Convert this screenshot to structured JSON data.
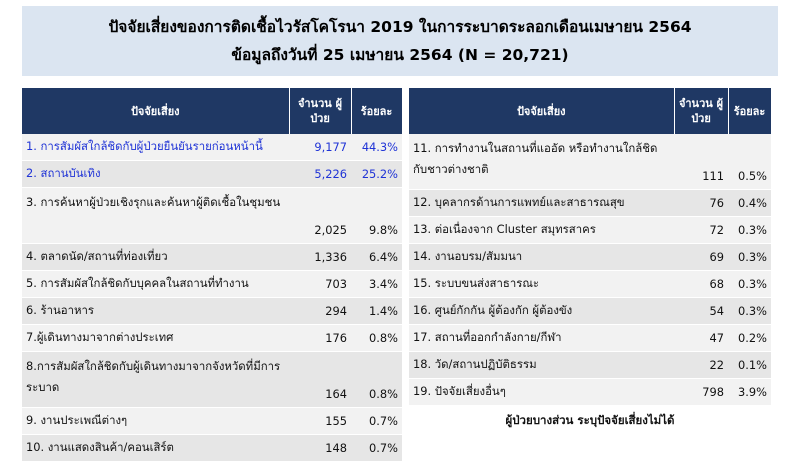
{
  "title": {
    "line1": "ปัจจัยเสี่ยงของการติดเชื้อไวรัสโคโรนา 2019 ในการระบาดระลอกเดือนเมษายน 2564",
    "line2": "ข้อมูลถึงวันที่ 25 เมษายน 2564 (N = 20,721)"
  },
  "table_left": {
    "headers": {
      "factor": "ปัจจัยเสี่ยง",
      "count": "จำนวน ผู้ป่วย",
      "percent": "ร้อยละ"
    },
    "rows": [
      {
        "factor": "1. การสัมผัสใกล้ชิดกับผู้ป่วยยืนยันรายก่อนหน้านี้",
        "count": "9,177",
        "percent": "44.3%"
      },
      {
        "factor": "2. สถานบันเทิง",
        "count": "5,226",
        "percent": "25.2%"
      },
      {
        "factor": "3. การค้นหาผู้ป่วยเชิงรุกและค้นหาผู้ติดเชื้อในชุมชน",
        "count": "2,025",
        "percent": "9.8%"
      },
      {
        "factor": "4. ตลาดนัด/สถานที่ท่องเที่ยว",
        "count": "1,336",
        "percent": "6.4%"
      },
      {
        "factor": "5. การสัมผัสใกล้ชิดกับบุคคลในสถานที่ทำงาน",
        "count": "703",
        "percent": "3.4%"
      },
      {
        "factor": "6. ร้านอาหาร",
        "count": "294",
        "percent": "1.4%"
      },
      {
        "factor": "7.ผู้เดินทางมาจากต่างประเทศ",
        "count": "176",
        "percent": "0.8%"
      },
      {
        "factor": "8.การสัมผัสใกล้ชิดกับผู้เดินทางมาจากจังหวัดที่มีการระบาด",
        "count": "164",
        "percent": "0.8%"
      },
      {
        "factor": "9. งานประเพณีต่างๆ",
        "count": "155",
        "percent": "0.7%"
      },
      {
        "factor": "10. งานแสดงสินค้า/คอนเสิร์ต",
        "count": "148",
        "percent": "0.7%"
      }
    ]
  },
  "table_right": {
    "headers": {
      "factor": "ปัจจัยเสี่ยง",
      "count": "จำนวน ผู้ป่วย",
      "percent": "ร้อยละ"
    },
    "rows": [
      {
        "factor": "11. การทำงานในสถานที่แออัด หรือทำงานใกล้ชิดกับชาวต่างชาติ",
        "count": "111",
        "percent": "0.5%"
      },
      {
        "factor": "12. บุคลากรด้านการแพทย์และสาธารณสุข",
        "count": "76",
        "percent": "0.4%"
      },
      {
        "factor": "13. ต่อเนื่องจาก Cluster สมุทรสาคร",
        "count": "72",
        "percent": "0.3%"
      },
      {
        "factor": "14. งานอบรม/สัมมนา",
        "count": "69",
        "percent": "0.3%"
      },
      {
        "factor": "15. ระบบขนส่งสาธารณะ",
        "count": "68",
        "percent": "0.3%"
      },
      {
        "factor": "16. ศูนย์กักกัน ผู้ต้องกัก ผู้ต้องขัง",
        "count": "54",
        "percent": "0.3%"
      },
      {
        "factor": "17. สถานที่ออกกำลังกาย/กีฬา",
        "count": "47",
        "percent": "0.2%"
      },
      {
        "factor": "18. วัด/สถานปฏิบัติธรรม",
        "count": "22",
        "percent": "0.1%"
      },
      {
        "factor": "19. ปัจจัยเสี่ยงอื่นๆ",
        "count": "798",
        "percent": "3.9%"
      }
    ]
  },
  "footnote": "ผู้ป่วยบางส่วน ระบุปัจจัยเสี่ยงไม่ได้",
  "colors": {
    "header_bg": "#1f3864",
    "title_bg": "#dbe5f1",
    "highlight_text": "#1f33d6"
  }
}
